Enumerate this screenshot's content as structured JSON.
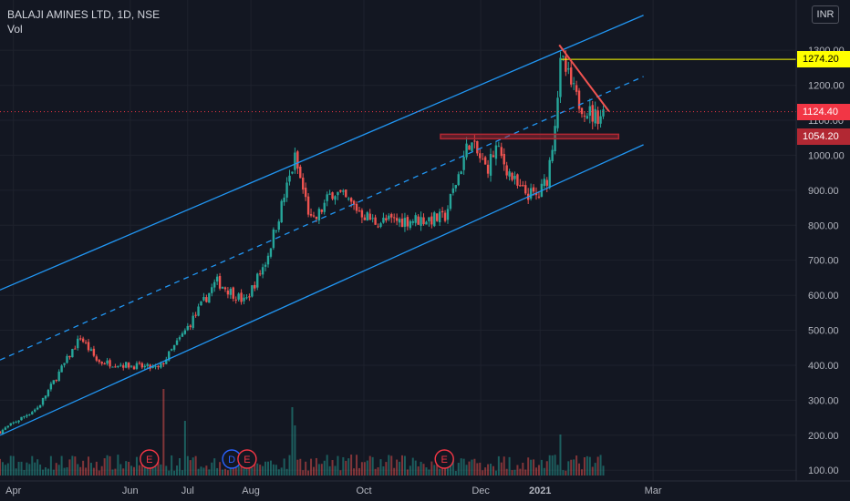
{
  "header": {
    "symbol_line": "BALAJI AMINES LTD, 1D, NSE",
    "indicator": "Vol"
  },
  "currency": "INR",
  "chart_data": {
    "type": "candlestick",
    "title": "BALAJI AMINES LTD, 1D, NSE",
    "currency": "INR",
    "x_ticks": [
      "Apr",
      "Jun",
      "Jul",
      "Aug",
      "Oct",
      "Dec",
      "2021",
      "Mar"
    ],
    "y_ticks": [
      100,
      200,
      300,
      400,
      500,
      600,
      700,
      800,
      900,
      1000,
      1100,
      1200,
      1300
    ],
    "y_range": [
      95,
      1400
    ],
    "grid": true,
    "price_path_anchors": [
      {
        "date": "2020-03-25",
        "price": 210
      },
      {
        "date": "2020-04-14",
        "price": 280
      },
      {
        "date": "2020-05-06",
        "price": 480
      },
      {
        "date": "2020-05-15",
        "price": 410
      },
      {
        "date": "2020-06-16",
        "price": 390
      },
      {
        "date": "2020-06-30",
        "price": 500
      },
      {
        "date": "2020-07-16",
        "price": 640
      },
      {
        "date": "2020-07-31",
        "price": 580
      },
      {
        "date": "2020-08-11",
        "price": 700
      },
      {
        "date": "2020-08-26",
        "price": 990
      },
      {
        "date": "2020-09-04",
        "price": 800
      },
      {
        "date": "2020-09-15",
        "price": 900
      },
      {
        "date": "2020-10-06",
        "price": 810
      },
      {
        "date": "2020-11-12",
        "price": 820
      },
      {
        "date": "2020-11-25",
        "price": 1040
      },
      {
        "date": "2020-12-04",
        "price": 960
      },
      {
        "date": "2020-12-09",
        "price": 1020
      },
      {
        "date": "2020-12-21",
        "price": 900
      },
      {
        "date": "2020-12-31",
        "price": 880
      },
      {
        "date": "2021-01-05",
        "price": 940
      },
      {
        "date": "2021-01-08",
        "price": 1060
      },
      {
        "date": "2021-01-12",
        "price": 1274.2
      },
      {
        "date": "2021-01-20",
        "price": 1160
      },
      {
        "date": "2021-01-29",
        "price": 1110
      },
      {
        "date": "2021-02-04",
        "price": 1124.4
      }
    ],
    "volume_spikes": [
      {
        "date": "2020-06-18",
        "volume": 0.95
      },
      {
        "date": "2020-08-24",
        "volume": 0.75
      },
      {
        "date": "2020-08-26",
        "volume": 0.55
      },
      {
        "date": "2020-06-30",
        "volume": 0.6
      },
      {
        "date": "2021-01-12",
        "volume": 0.45
      }
    ],
    "events": [
      {
        "date": "2020-06-11",
        "label": "E"
      },
      {
        "date": "2020-07-24",
        "label": "D"
      },
      {
        "date": "2020-08-01",
        "label": "E"
      },
      {
        "date": "2020-11-12",
        "label": "E"
      }
    ],
    "price_labels": [
      {
        "value": 1274.2,
        "text": "1274.20",
        "color": "#ffff00"
      },
      {
        "value": 1124.4,
        "text": "1124.40",
        "color": "#f23645"
      },
      {
        "value": 1054.2,
        "text": "1054.20",
        "color": "#b22833"
      }
    ],
    "channel": {
      "color": "#2196f3",
      "upper": [
        {
          "date": "2020-03-25",
          "price": 615
        },
        {
          "date": "2021-02-24",
          "price": 1400
        }
      ],
      "lower": [
        {
          "date": "2020-03-25",
          "price": 200
        },
        {
          "date": "2021-02-24",
          "price": 1030
        }
      ],
      "mid": [
        {
          "date": "2020-03-25",
          "price": 415
        },
        {
          "date": "2021-02-24",
          "price": 1225
        }
      ]
    },
    "resistance_line": {
      "color": "#ef5350",
      "from": {
        "date": "2021-01-11",
        "price": 1315
      },
      "to": {
        "date": "2021-02-06",
        "price": 1125
      }
    },
    "peak_line": {
      "color": "#ffff00",
      "price": 1274.2
    },
    "support_zone": {
      "color": "#b22833",
      "from": "2020-11-10",
      "to": "2021-02-11",
      "low": 1047,
      "high": 1060
    }
  }
}
